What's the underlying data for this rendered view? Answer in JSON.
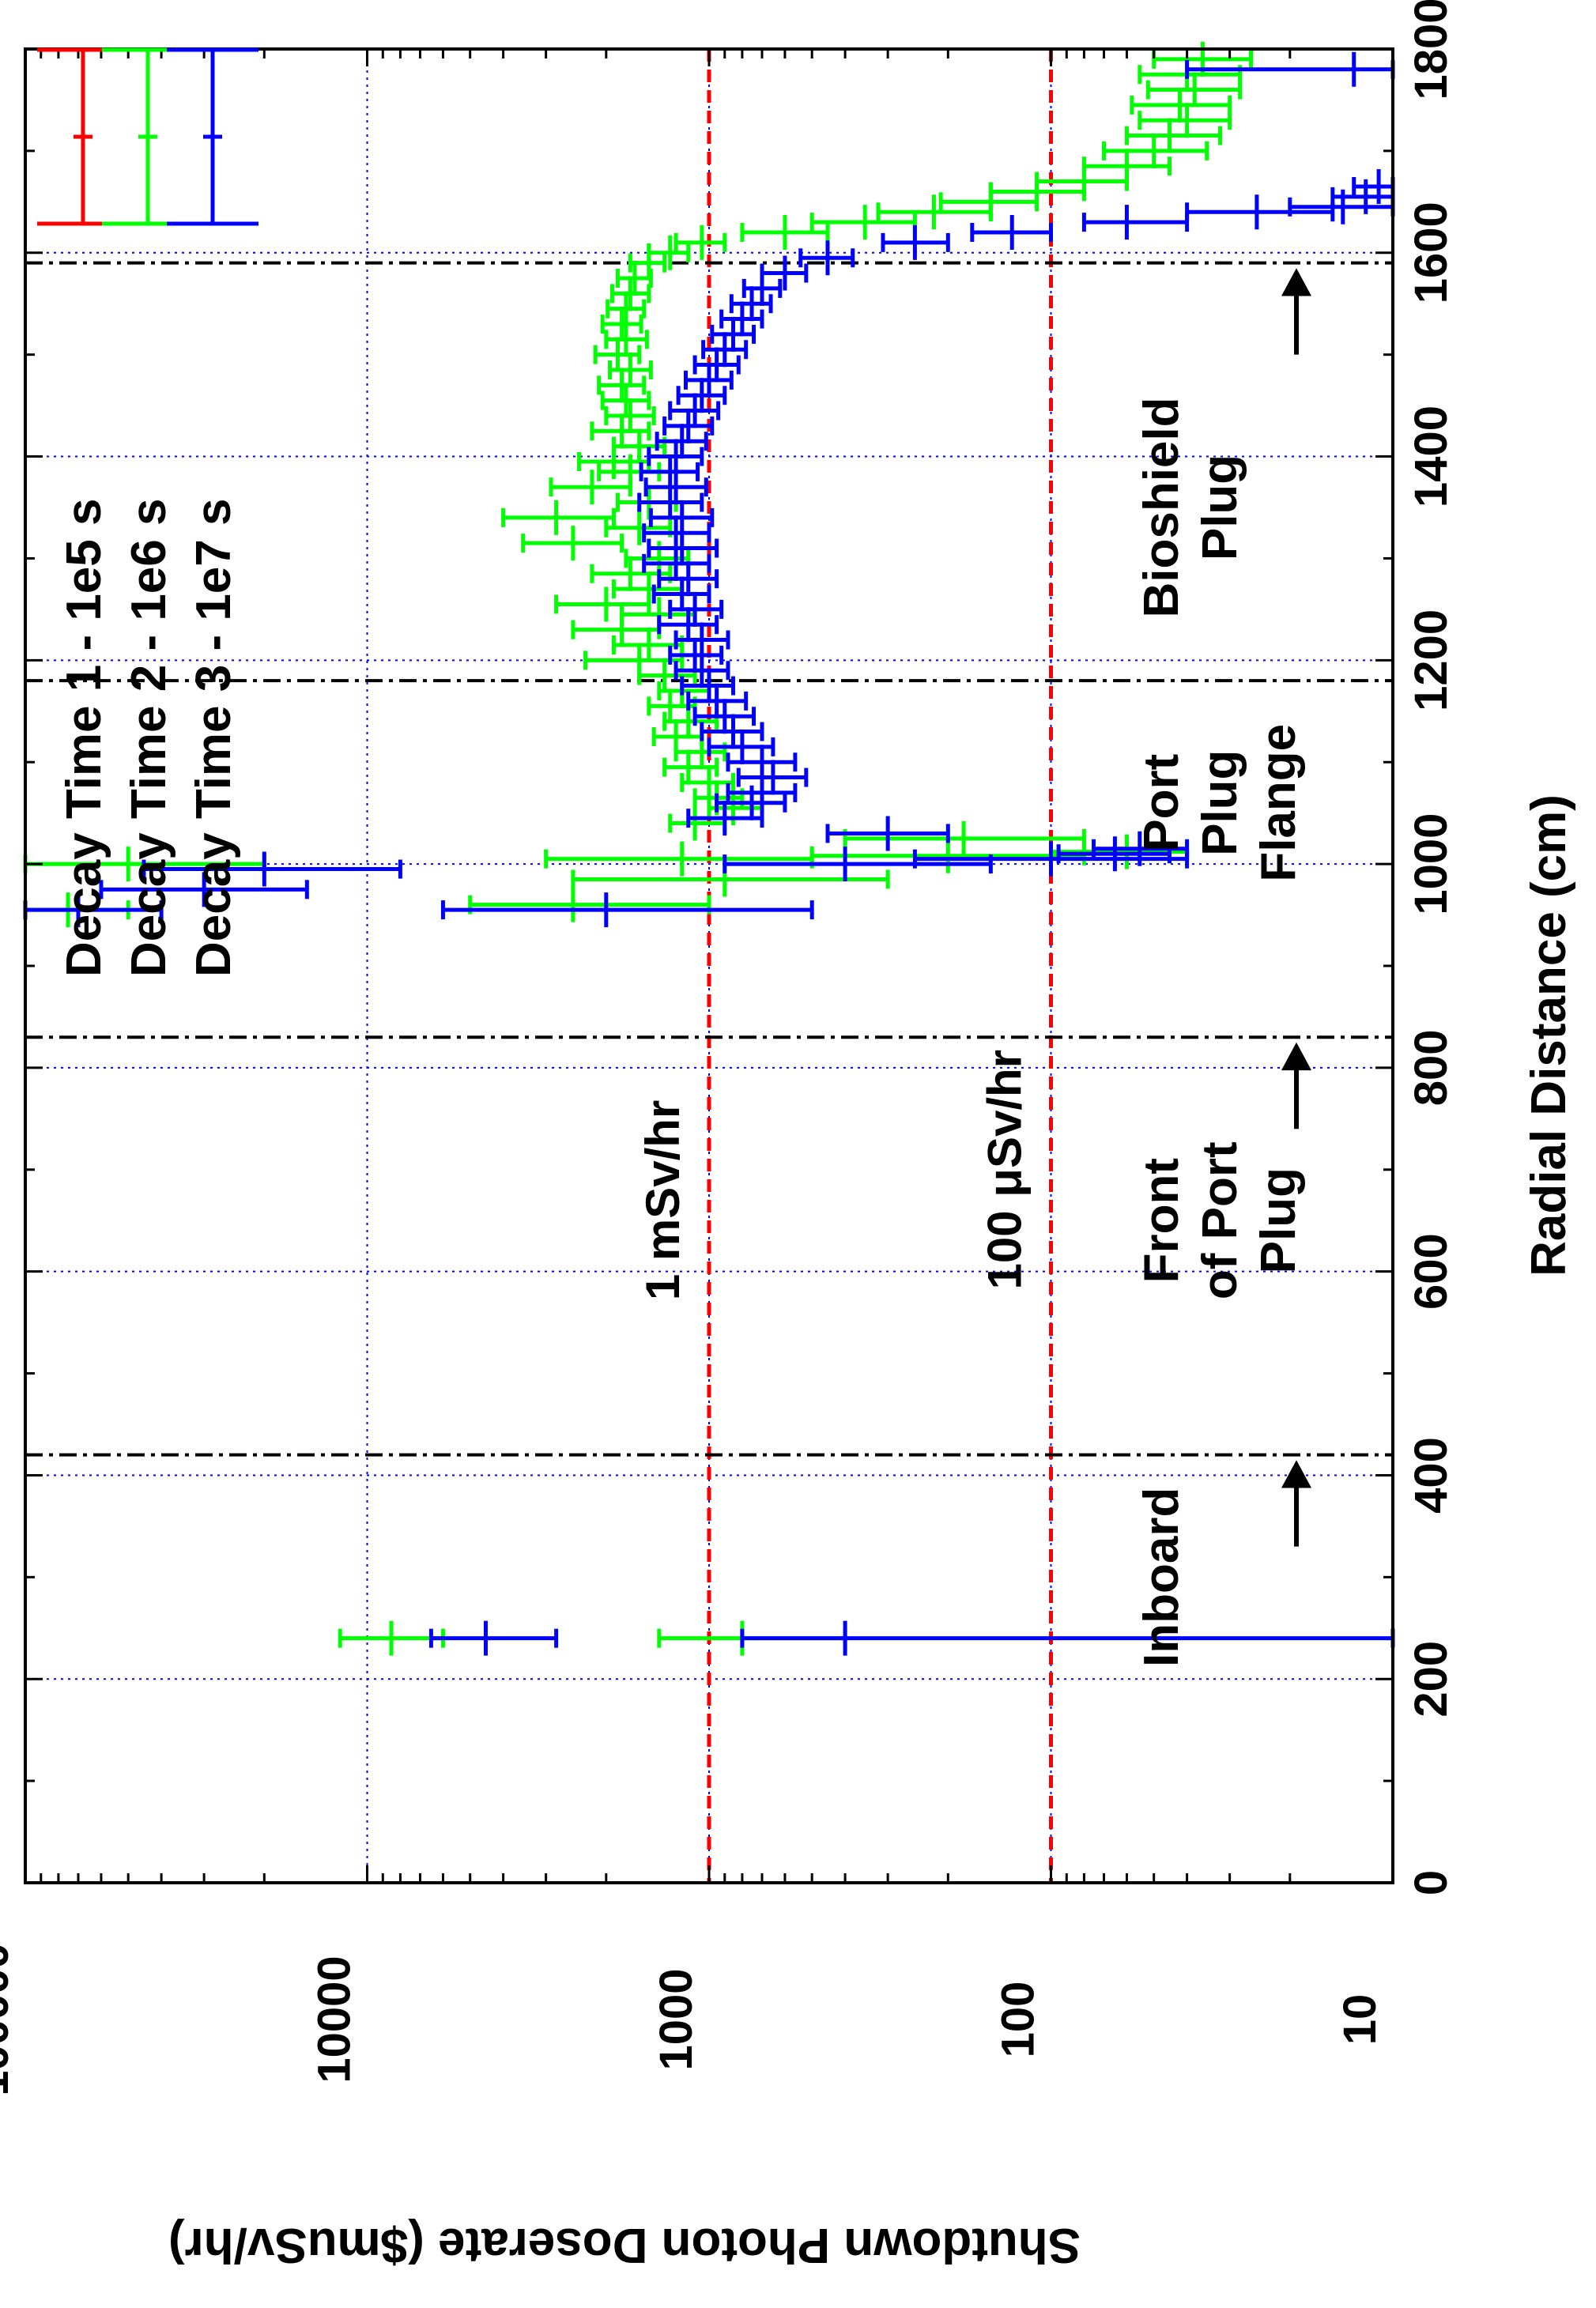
{
  "chart_data": {
    "type": "scatter",
    "orientation": "rotated-90-ccw",
    "xlabel": "Radial Distance (cm)",
    "ylabel": "Shutdown Photon Doserate ($muSv/hr)",
    "xlim": [
      0,
      1800
    ],
    "ylim": [
      10,
      100000
    ],
    "yscale": "log",
    "x_ticks": [
      "0",
      "200",
      "400",
      "600",
      "800",
      "1000",
      "1200",
      "1400",
      "1600",
      "1800"
    ],
    "y_ticks": [
      "10",
      "100",
      "1000",
      "10000",
      "100000"
    ],
    "grid": true,
    "legend_position": "top-right",
    "series": [
      {
        "name": "Decay Time 1 - 1e5 s",
        "color": "#ff0000",
        "points": []
      },
      {
        "name": "Decay Time 2 - 1e6 s",
        "color": "#00ff00",
        "points": [
          [
            240,
            8500,
            6000,
            12000
          ],
          [
            240,
            800,
            400,
            1400
          ],
          [
            955,
            75000,
            50000,
            100000
          ],
          [
            960,
            2500,
            1000,
            5000
          ],
          [
            985,
            900,
            300,
            2500
          ],
          [
            1000,
            50000,
            20000,
            100000
          ],
          [
            1005,
            1200,
            500,
            3000
          ],
          [
            1008,
            200,
            80,
            500
          ],
          [
            1012,
            60,
            40,
            100
          ],
          [
            1025,
            180,
            80,
            400
          ],
          [
            1040,
            1100,
            900,
            1300
          ],
          [
            1055,
            850,
            700,
            1000
          ],
          [
            1065,
            950,
            800,
            1100
          ],
          [
            1080,
            1000,
            850,
            1200
          ],
          [
            1095,
            1150,
            950,
            1350
          ],
          [
            1110,
            1050,
            900,
            1250
          ],
          [
            1125,
            1250,
            1050,
            1450
          ],
          [
            1140,
            1150,
            950,
            1350
          ],
          [
            1155,
            1300,
            1100,
            1500
          ],
          [
            1170,
            1200,
            1000,
            1400
          ],
          [
            1185,
            1350,
            1100,
            1600
          ],
          [
            1200,
            1600,
            1200,
            2300
          ],
          [
            1215,
            1500,
            1200,
            1900
          ],
          [
            1230,
            1800,
            1400,
            2500
          ],
          [
            1245,
            1400,
            1100,
            1800
          ],
          [
            1255,
            2000,
            1500,
            2800
          ],
          [
            1270,
            1500,
            1200,
            1900
          ],
          [
            1285,
            1700,
            1300,
            2200
          ],
          [
            1300,
            1400,
            1150,
            1750
          ],
          [
            1315,
            2500,
            1800,
            3500
          ],
          [
            1330,
            1600,
            1300,
            2000
          ],
          [
            1340,
            2800,
            1900,
            4000
          ],
          [
            1355,
            1500,
            1250,
            1850
          ],
          [
            1370,
            2200,
            1700,
            2900
          ],
          [
            1385,
            1700,
            1400,
            2100
          ],
          [
            1395,
            1900,
            1500,
            2400
          ],
          [
            1410,
            1600,
            1350,
            1900
          ],
          [
            1425,
            1800,
            1500,
            2200
          ],
          [
            1440,
            1700,
            1450,
            2000
          ],
          [
            1455,
            1750,
            1500,
            2050
          ],
          [
            1470,
            1800,
            1550,
            2100
          ],
          [
            1485,
            1700,
            1480,
            1950
          ],
          [
            1500,
            1850,
            1600,
            2150
          ],
          [
            1515,
            1750,
            1520,
            2000
          ],
          [
            1530,
            1800,
            1580,
            2050
          ],
          [
            1545,
            1750,
            1550,
            1980
          ],
          [
            1560,
            1700,
            1500,
            1920
          ],
          [
            1575,
            1650,
            1480,
            1850
          ],
          [
            1590,
            1500,
            1350,
            1700
          ],
          [
            1600,
            1300,
            1150,
            1500
          ],
          [
            1610,
            1050,
            900,
            1250
          ],
          [
            1620,
            600,
            450,
            800
          ],
          [
            1630,
            350,
            250,
            500
          ],
          [
            1640,
            220,
            150,
            320
          ],
          [
            1650,
            150,
            110,
            210
          ],
          [
            1660,
            110,
            80,
            150
          ],
          [
            1670,
            80,
            60,
            110
          ],
          [
            1685,
            60,
            45,
            80
          ],
          [
            1700,
            50,
            35,
            70
          ],
          [
            1715,
            45,
            32,
            60
          ],
          [
            1730,
            40,
            30,
            55
          ],
          [
            1745,
            42,
            30,
            58
          ],
          [
            1760,
            38,
            28,
            52
          ],
          [
            1775,
            40,
            28,
            55
          ],
          [
            1790,
            36,
            26,
            50
          ]
        ]
      },
      {
        "name": "Decay Time 3 - 1e7 s",
        "color": "#0000ff",
        "points": [
          [
            240,
            4500,
            2800,
            6500
          ],
          [
            240,
            400,
            10,
            800
          ],
          [
            955,
            2000,
            500,
            6000
          ],
          [
            955,
            70000,
            40000,
            100000
          ],
          [
            975,
            30000,
            15000,
            60000
          ],
          [
            995,
            20000,
            8000,
            45000
          ],
          [
            1000,
            400,
            150,
            900
          ],
          [
            1005,
            100,
            40,
            250
          ],
          [
            1010,
            65,
            45,
            95
          ],
          [
            1015,
            55,
            40,
            75
          ],
          [
            1030,
            300,
            200,
            450
          ],
          [
            1045,
            900,
            700,
            1150
          ],
          [
            1060,
            750,
            600,
            950
          ],
          [
            1070,
            700,
            560,
            880
          ],
          [
            1085,
            650,
            520,
            820
          ],
          [
            1100,
            700,
            560,
            880
          ],
          [
            1115,
            800,
            650,
            1000
          ],
          [
            1130,
            850,
            700,
            1050
          ],
          [
            1145,
            900,
            740,
            1100
          ],
          [
            1160,
            950,
            780,
            1150
          ],
          [
            1175,
            1000,
            850,
            1200
          ],
          [
            1190,
            1050,
            880,
            1250
          ],
          [
            1205,
            1100,
            920,
            1300
          ],
          [
            1220,
            1050,
            880,
            1250
          ],
          [
            1235,
            1150,
            950,
            1400
          ],
          [
            1250,
            1100,
            920,
            1300
          ],
          [
            1265,
            1200,
            1000,
            1450
          ],
          [
            1280,
            1150,
            950,
            1400
          ],
          [
            1295,
            1250,
            1000,
            1550
          ],
          [
            1310,
            1200,
            950,
            1500
          ],
          [
            1325,
            1250,
            1000,
            1550
          ],
          [
            1340,
            1200,
            980,
            1480
          ],
          [
            1355,
            1300,
            1050,
            1600
          ],
          [
            1370,
            1250,
            1020,
            1530
          ],
          [
            1385,
            1300,
            1080,
            1580
          ],
          [
            1400,
            1250,
            1050,
            1500
          ],
          [
            1415,
            1200,
            1020,
            1420
          ],
          [
            1430,
            1150,
            980,
            1350
          ],
          [
            1445,
            1100,
            940,
            1300
          ],
          [
            1460,
            1050,
            900,
            1230
          ],
          [
            1475,
            1000,
            860,
            1170
          ],
          [
            1490,
            950,
            820,
            1100
          ],
          [
            1505,
            900,
            780,
            1040
          ],
          [
            1520,
            850,
            740,
            980
          ],
          [
            1535,
            800,
            700,
            920
          ],
          [
            1550,
            750,
            660,
            860
          ],
          [
            1565,
            700,
            620,
            790
          ],
          [
            1580,
            600,
            520,
            700
          ],
          [
            1595,
            450,
            380,
            540
          ],
          [
            1610,
            250,
            200,
            310
          ],
          [
            1620,
            130,
            100,
            170
          ],
          [
            1630,
            60,
            40,
            80
          ],
          [
            1640,
            25,
            15,
            40
          ],
          [
            1645,
            14,
            10,
            20
          ],
          [
            1655,
            12,
            10,
            15
          ],
          [
            1665,
            11,
            10,
            13
          ],
          [
            1780,
            13,
            10,
            40
          ]
        ]
      }
    ],
    "reference_lines": [
      {
        "label": "1 mSv/hr",
        "value": 1000,
        "color": "#ff0000"
      },
      {
        "label": "100 μSv/hr",
        "value": 100,
        "color": "#ff0000"
      }
    ],
    "region_boundaries": [
      420,
      830,
      1180,
      1590
    ],
    "annotations": [
      {
        "lines": [
          "Inboard"
        ],
        "x": 300
      },
      {
        "lines": [
          "Front",
          "of Port",
          "Plug"
        ],
        "x": 650
      },
      {
        "lines": [
          "Port",
          "Plug",
          "Flange"
        ],
        "x": 1060
      },
      {
        "lines": [
          "Bioshield",
          "Plug"
        ],
        "x": 1350
      }
    ],
    "arrows": [
      {
        "x_from": 330,
        "x_to": 410
      },
      {
        "x_from": 740,
        "x_to": 820
      },
      {
        "x_from": 1500,
        "x_to": 1580
      }
    ]
  }
}
